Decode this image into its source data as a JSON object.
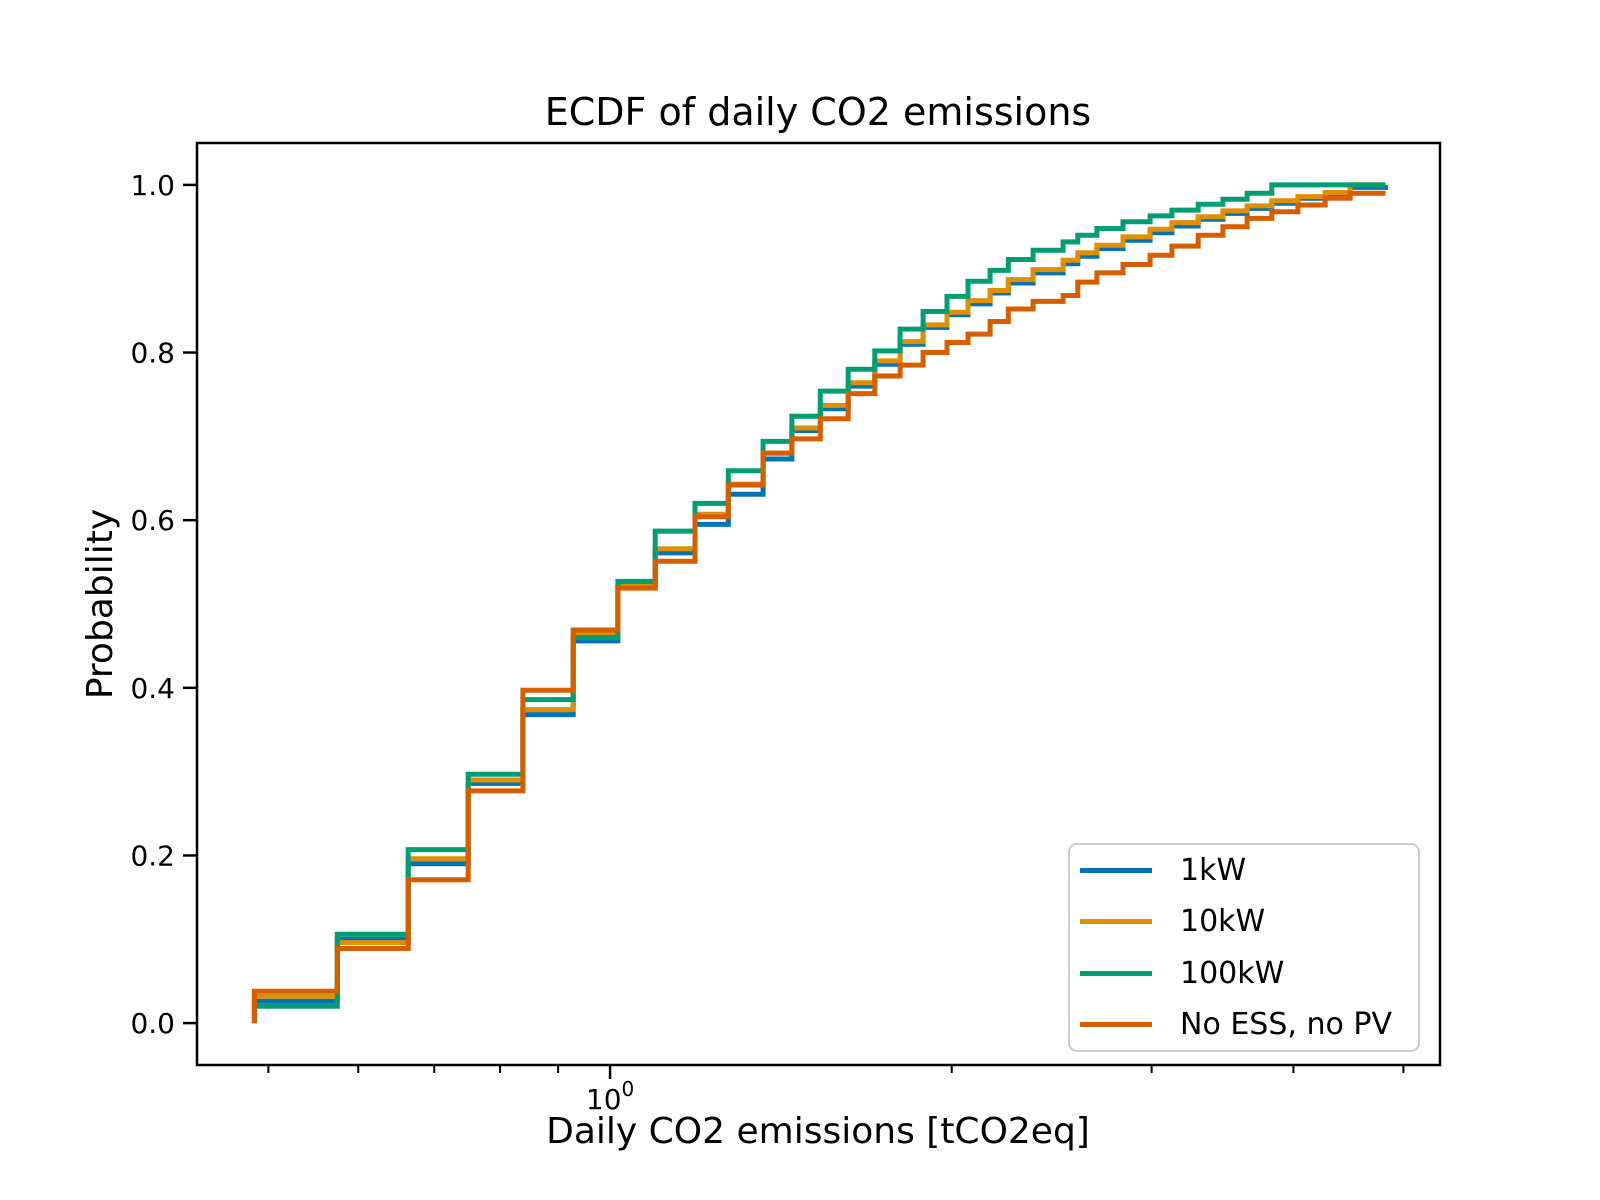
{
  "figure": {
    "background": "#ffffff",
    "axes_color": "#000000",
    "legend_border_color": "#cccccc"
  },
  "chart_data": {
    "type": "line",
    "subtype": "ecdf-step",
    "title": "ECDF of daily CO2 emissions",
    "xlabel": "Daily CO2 emissions [tCO2eq]",
    "ylabel": "Probability",
    "x_scale": "log",
    "grid": "off",
    "xlim": [
      0.4326,
      5.385
    ],
    "ylim": [
      -0.05,
      1.05
    ],
    "y_ticks": [
      {
        "value": 0.0,
        "label": "0.0"
      },
      {
        "value": 0.2,
        "label": "0.2"
      },
      {
        "value": 0.4,
        "label": "0.4"
      },
      {
        "value": 0.6,
        "label": "0.6"
      },
      {
        "value": 0.8,
        "label": "0.8"
      },
      {
        "value": 1.0,
        "label": "1.0"
      }
    ],
    "x_major_ticks": [
      {
        "value": 1,
        "mantissa": "10",
        "exponent": "0"
      }
    ],
    "x_minor_ticks": [
      0.5,
      0.6,
      0.7,
      0.8,
      0.9,
      2,
      3,
      4,
      5
    ],
    "x": [
      0.486,
      0.575,
      0.664,
      0.75,
      0.838,
      0.928,
      1.016,
      1.096,
      1.188,
      1.271,
      1.364,
      1.446,
      1.532,
      1.621,
      1.711,
      1.801,
      1.887,
      1.981,
      2.067,
      2.162,
      2.243,
      2.359,
      2.507,
      2.583,
      2.685,
      2.831,
      2.991,
      3.126,
      3.297,
      3.467,
      3.641,
      3.828,
      4.036,
      4.266,
      4.487,
      4.82
    ],
    "series": [
      {
        "name": "1kW",
        "color": "#0173B2",
        "values": [
          0.026,
          0.1,
          0.19,
          0.286,
          0.368,
          0.456,
          0.52,
          0.561,
          0.595,
          0.631,
          0.673,
          0.707,
          0.733,
          0.76,
          0.786,
          0.81,
          0.83,
          0.845,
          0.858,
          0.871,
          0.883,
          0.895,
          0.906,
          0.915,
          0.924,
          0.934,
          0.943,
          0.951,
          0.959,
          0.966,
          0.972,
          0.978,
          0.984,
          0.989,
          0.997,
          1.0
        ]
      },
      {
        "name": "10kW",
        "color": "#DE8F05",
        "values": [
          0.032,
          0.096,
          0.196,
          0.29,
          0.374,
          0.463,
          0.522,
          0.566,
          0.607,
          0.643,
          0.68,
          0.71,
          0.737,
          0.764,
          0.79,
          0.813,
          0.833,
          0.848,
          0.862,
          0.874,
          0.887,
          0.899,
          0.91,
          0.919,
          0.928,
          0.938,
          0.947,
          0.955,
          0.962,
          0.969,
          0.975,
          0.981,
          0.986,
          0.991,
          1.0,
          1.0
        ]
      },
      {
        "name": "100kW",
        "color": "#029E73",
        "values": [
          0.02,
          0.106,
          0.207,
          0.297,
          0.386,
          0.46,
          0.527,
          0.587,
          0.62,
          0.659,
          0.694,
          0.724,
          0.754,
          0.78,
          0.802,
          0.828,
          0.849,
          0.867,
          0.885,
          0.898,
          0.911,
          0.922,
          0.932,
          0.94,
          0.948,
          0.956,
          0.963,
          0.97,
          0.977,
          0.983,
          0.99,
          1.0,
          1.0,
          1.0,
          1.0,
          1.0
        ]
      },
      {
        "name": "No ESS, no PV",
        "color": "#D55E00",
        "values": [
          0.038,
          0.089,
          0.171,
          0.277,
          0.397,
          0.469,
          0.519,
          0.551,
          0.604,
          0.642,
          0.68,
          0.697,
          0.721,
          0.751,
          0.772,
          0.785,
          0.8,
          0.812,
          0.822,
          0.837,
          0.852,
          0.861,
          0.868,
          0.884,
          0.895,
          0.905,
          0.916,
          0.927,
          0.94,
          0.95,
          0.96,
          0.968,
          0.976,
          0.984,
          0.99,
          0.99
        ]
      }
    ],
    "legend": {
      "position": "lower right",
      "entries": [
        "1kW",
        "10kW",
        "100kW",
        "No ESS, no PV"
      ]
    }
  }
}
